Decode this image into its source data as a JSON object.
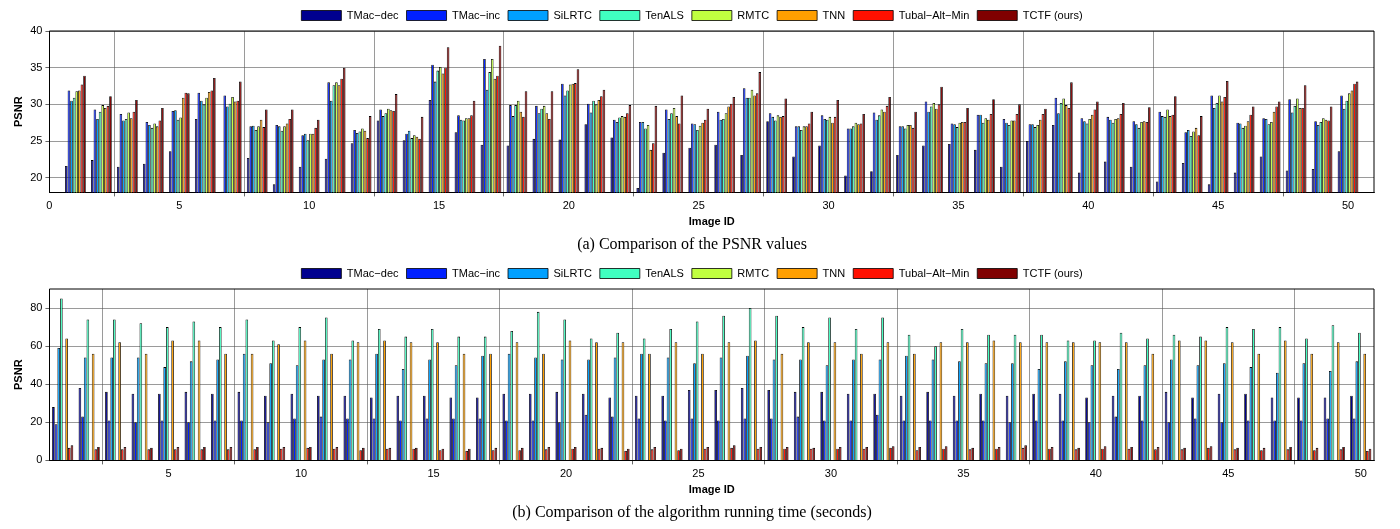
{
  "chart_data": [
    {
      "type": "bar",
      "title": "(a) Comparison of the PSNR values",
      "xlabel": "Image ID",
      "ylabel": "PSNR",
      "legend": "top",
      "grid": true,
      "x": [
        1,
        2,
        3,
        4,
        5,
        6,
        7,
        8,
        9,
        10,
        11,
        12,
        13,
        14,
        15,
        16,
        17,
        18,
        19,
        20,
        21,
        22,
        23,
        24,
        25,
        26,
        27,
        28,
        29,
        30,
        31,
        32,
        33,
        34,
        35,
        36,
        37,
        38,
        39,
        40,
        41,
        42,
        43,
        44,
        45,
        46,
        47,
        48,
        49,
        50
      ],
      "xlim": [
        0,
        51
      ],
      "xticks": [
        0,
        5,
        10,
        15,
        20,
        25,
        30,
        35,
        40,
        45,
        50
      ],
      "ylim": [
        18,
        40
      ],
      "yticks": [
        20,
        25,
        30,
        35,
        40
      ],
      "series": [
        {
          "name": "TMac−dec",
          "color": "#00008f",
          "values": [
            21.6,
            22.4,
            21.5,
            21.9,
            23.6,
            28.0,
            18.1,
            22.7,
            19.1,
            21.5,
            22.6,
            24.7,
            27.8,
            25.1,
            30.6,
            26.2,
            24.5,
            24.4,
            25.3,
            25.2,
            27.3,
            25.5,
            18.6,
            23.4,
            24.1,
            24.5,
            23.1,
            27.7,
            22.9,
            24.4,
            20.3,
            20.9,
            23.1,
            24.4,
            24.6,
            23.8,
            21.5,
            25.0,
            27.2,
            20.7,
            22.2,
            21.5,
            19.5,
            22.0,
            19.1,
            20.7,
            22.9,
            21.0,
            21.2,
            23.6
          ]
        },
        {
          "name": "TMac−inc",
          "color": "#0020ff",
          "values": [
            31.9,
            29.3,
            28.7,
            27.6,
            29.1,
            31.6,
            31.2,
            27.0,
            27.2,
            25.8,
            33.0,
            26.5,
            29.3,
            26.0,
            35.4,
            28.5,
            36.2,
            29.9,
            29.8,
            32.8,
            30.1,
            27.9,
            27.6,
            29.3,
            27.4,
            29.0,
            32.2,
            28.8,
            27.0,
            28.5,
            26.7,
            28.9,
            27.0,
            30.4,
            27.4,
            28.6,
            28.0,
            27.3,
            30.9,
            28.1,
            28.3,
            27.7,
            29.0,
            26.2,
            31.2,
            27.5,
            28.1,
            30.7,
            27.7,
            31.2
          ]
        },
        {
          "name": "SiLRTC",
          "color": "#00a0ff",
          "values": [
            30.5,
            28.0,
            27.8,
            27.2,
            29.2,
            30.5,
            29.7,
            27.1,
            27.0,
            26.0,
            30.5,
            26.1,
            28.4,
            26.4,
            33.1,
            27.9,
            32.0,
            28.4,
            28.8,
            31.2,
            28.9,
            27.6,
            27.6,
            28.0,
            27.3,
            27.9,
            30.9,
            28.3,
            27.0,
            28.0,
            26.7,
            27.9,
            27.0,
            29.0,
            27.3,
            28.6,
            27.5,
            27.3,
            28.8,
            27.7,
            27.9,
            27.3,
            28.4,
            26.5,
            29.5,
            27.4,
            28.0,
            28.9,
            27.2,
            29.4
          ]
        },
        {
          "name": "TenALS",
          "color": "#40ffc0",
          "values": [
            30.9,
            29.0,
            28.0,
            26.8,
            27.9,
            30.0,
            30.1,
            26.5,
            26.4,
            25.1,
            32.6,
            26.3,
            28.8,
            25.4,
            34.6,
            27.8,
            34.4,
            29.9,
            29.4,
            31.9,
            30.5,
            28.2,
            26.7,
            28.8,
            26.5,
            28.0,
            30.9,
            27.8,
            26.5,
            27.9,
            27.0,
            28.5,
            26.7,
            29.7,
            26.9,
            27.5,
            27.2,
            26.9,
            30.2,
            27.4,
            27.5,
            26.8,
            28.3,
            25.7,
            30.2,
            26.8,
            27.3,
            29.8,
            27.6,
            30.5
          ]
        },
        {
          "name": "RMTC",
          "color": "#c0ff40",
          "values": [
            31.8,
            29.9,
            28.9,
            27.4,
            28.2,
            30.9,
            31.0,
            27.0,
            27.0,
            26.0,
            33.0,
            26.7,
            29.4,
            25.8,
            35.1,
            28.1,
            36.2,
            30.5,
            29.8,
            32.7,
            30.0,
            28.4,
            27.2,
            29.5,
            27.1,
            28.8,
            32.0,
            28.5,
            27.0,
            28.3,
            27.5,
            29.3,
            27.2,
            30.2,
            27.5,
            28.1,
            27.8,
            27.2,
            30.8,
            28.0,
            28.0,
            27.6,
            29.3,
            26.3,
            31.2,
            27.1,
            27.6,
            30.8,
            28.1,
            31.5
          ]
        },
        {
          "name": "TNN",
          "color": "#ff9f00",
          "values": [
            31.9,
            29.5,
            28.1,
            27.0,
            30.9,
            31.7,
            30.4,
            27.9,
            27.4,
            26.0,
            32.6,
            26.4,
            29.2,
            25.6,
            34.2,
            28.1,
            33.5,
            29.0,
            28.8,
            32.8,
            30.6,
            28.3,
            23.8,
            28.4,
            27.5,
            29.7,
            31.2,
            28.3,
            27.0,
            27.5,
            27.3,
            29.0,
            27.2,
            29.4,
            27.6,
            27.9,
            27.8,
            27.9,
            29.9,
            28.6,
            28.1,
            27.7,
            28.4,
            26.8,
            30.4,
            27.7,
            29.0,
            29.5,
            27.9,
            31.9
          ]
        },
        {
          "name": "Tubal−Alt−Min",
          "color": "#ff1000",
          "values": [
            32.7,
            29.8,
            29.0,
            27.8,
            31.6,
            31.9,
            30.5,
            26.9,
            28.0,
            26.8,
            33.5,
            25.4,
            29.1,
            25.3,
            35.0,
            28.5,
            33.9,
            28.3,
            28.0,
            32.9,
            31.1,
            28.8,
            24.7,
            27.4,
            27.9,
            30.1,
            31.5,
            28.4,
            27.4,
            28.3,
            27.4,
            29.8,
            26.8,
            30.0,
            27.6,
            28.7,
            28.7,
            28.7,
            29.5,
            29.3,
            28.7,
            27.6,
            28.6,
            25.8,
            31.0,
            28.6,
            29.7,
            29.5,
            27.8,
            32.8
          ]
        },
        {
          "name": "TCTF (ours)",
          "color": "#800000",
          "values": [
            33.9,
            31.1,
            30.6,
            29.5,
            31.5,
            33.6,
            33.1,
            29.3,
            29.3,
            27.9,
            35.0,
            28.4,
            31.4,
            28.3,
            37.8,
            30.5,
            38.0,
            31.8,
            31.8,
            34.8,
            32.0,
            29.9,
            29.8,
            31.2,
            29.4,
            31.0,
            34.4,
            30.8,
            29.0,
            30.6,
            28.7,
            31.0,
            29.0,
            32.4,
            29.5,
            30.7,
            30.0,
            29.4,
            33.0,
            30.4,
            30.2,
            29.6,
            31.1,
            28.4,
            33.2,
            29.7,
            30.4,
            32.6,
            29.7,
            33.1
          ]
        }
      ]
    },
    {
      "type": "bar",
      "title": "(b) Comparison of the algorithm running time (seconds)",
      "xlabel": "Image ID",
      "ylabel": "PSNR",
      "legend": "top",
      "grid": true,
      "x": [
        1,
        2,
        3,
        4,
        5,
        6,
        7,
        8,
        9,
        10,
        11,
        12,
        13,
        14,
        15,
        16,
        17,
        18,
        19,
        20,
        21,
        22,
        23,
        24,
        25,
        26,
        27,
        28,
        29,
        30,
        31,
        32,
        33,
        34,
        35,
        36,
        37,
        38,
        39,
        40,
        41,
        42,
        43,
        44,
        45,
        46,
        47,
        48,
        49,
        50
      ],
      "xlim": [
        0.5,
        50.5
      ],
      "xticks": [
        5,
        10,
        15,
        20,
        25,
        30,
        35,
        40,
        45,
        50
      ],
      "ylim": [
        0,
        90
      ],
      "yticks": [
        0,
        20,
        40,
        60,
        80
      ],
      "series": [
        {
          "name": "TMac−dec",
          "color": "#00008f",
          "values": [
            28,
            38,
            36,
            35,
            35,
            36,
            35,
            36,
            34,
            35,
            34,
            34,
            33,
            34,
            34,
            33,
            33,
            35,
            35,
            36,
            35,
            33,
            34,
            34,
            37,
            37,
            38,
            37,
            36,
            36,
            35,
            35,
            34,
            36,
            34,
            35,
            34,
            35,
            35,
            33,
            34,
            34,
            36,
            33,
            35,
            35,
            33,
            33,
            33,
            34
          ]
        },
        {
          "name": "TMac−inc",
          "color": "#0020ff",
          "values": [
            19,
            23,
            21,
            20,
            21,
            20,
            21,
            21,
            20,
            22,
            23,
            22,
            22,
            21,
            22,
            22,
            22,
            21,
            21,
            20,
            24,
            23,
            22,
            21,
            22,
            21,
            22,
            22,
            23,
            21,
            21,
            24,
            21,
            21,
            21,
            21,
            20,
            21,
            21,
            20,
            23,
            21,
            20,
            22,
            20,
            21,
            21,
            21,
            22,
            22
          ]
        },
        {
          "name": "SiLRTC",
          "color": "#00a0ff",
          "values": [
            59,
            54,
            54,
            54,
            49,
            52,
            53,
            56,
            51,
            50,
            53,
            53,
            56,
            48,
            53,
            50,
            55,
            56,
            54,
            53,
            53,
            54,
            56,
            54,
            51,
            54,
            55,
            53,
            53,
            50,
            53,
            53,
            55,
            53,
            52,
            51,
            51,
            48,
            52,
            50,
            48,
            50,
            53,
            50,
            51,
            49,
            46,
            51,
            47,
            52
          ]
        },
        {
          "name": "TenALS",
          "color": "#40ffc0",
          "values": [
            85,
            74,
            74,
            72,
            70,
            73,
            70,
            74,
            63,
            70,
            75,
            63,
            69,
            65,
            69,
            65,
            65,
            68,
            78,
            74,
            64,
            67,
            64,
            69,
            73,
            76,
            80,
            76,
            70,
            75,
            69,
            75,
            66,
            60,
            69,
            66,
            66,
            66,
            63,
            63,
            67,
            64,
            66,
            65,
            70,
            69,
            70,
            64,
            71,
            67
          ]
        },
        {
          "name": "RMTC",
          "color": "#c0ff40",
          "values": [
            null,
            null,
            null,
            null,
            null,
            null,
            null,
            null,
            null,
            null,
            null,
            null,
            null,
            null,
            null,
            null,
            null,
            null,
            null,
            null,
            null,
            null,
            null,
            null,
            null,
            null,
            null,
            null,
            null,
            null,
            null,
            null,
            null,
            null,
            null,
            null,
            null,
            null,
            null,
            null,
            null,
            null,
            null,
            null,
            null,
            null,
            null,
            null,
            null,
            null
          ]
        },
        {
          "name": "TNN",
          "color": "#ff9f00",
          "values": [
            64,
            56,
            62,
            56,
            63,
            63,
            56,
            56,
            61,
            63,
            56,
            62,
            63,
            62,
            62,
            56,
            56,
            62,
            56,
            63,
            62,
            62,
            56,
            62,
            56,
            62,
            63,
            56,
            62,
            62,
            56,
            62,
            56,
            62,
            62,
            63,
            62,
            62,
            62,
            62,
            62,
            56,
            63,
            63,
            62,
            56,
            63,
            56,
            62,
            56
          ]
        },
        {
          "name": "Tubal−Alt−Min",
          "color": "#ff1000",
          "values": [
            6.6,
            5.8,
            5.8,
            5.8,
            5.8,
            5.8,
            5.8,
            5.8,
            6.1,
            6.6,
            6.1,
            5.3,
            6.1,
            6.1,
            5.3,
            5.0,
            5.3,
            5.3,
            5.8,
            6.1,
            6.1,
            5.0,
            5.8,
            5.3,
            6.1,
            6.6,
            6.1,
            6.1,
            6.1,
            6.1,
            6.1,
            6.6,
            5.3,
            6.1,
            5.8,
            6.1,
            6.6,
            6.1,
            5.8,
            6.1,
            6.1,
            5.8,
            5.8,
            6.6,
            5.8,
            5.3,
            5.8,
            5.3,
            5.8,
            5.0
          ]
        },
        {
          "name": "TCTF (ours)",
          "color": "#800000",
          "values": [
            7.9,
            7.1,
            7.1,
            6.6,
            7.1,
            7.1,
            7.1,
            7.1,
            7.1,
            7.1,
            7.1,
            6.6,
            6.6,
            6.6,
            6.1,
            6.1,
            6.6,
            6.6,
            7.1,
            7.1,
            6.6,
            6.1,
            7.1,
            6.1,
            7.1,
            7.9,
            7.1,
            7.1,
            6.6,
            7.1,
            7.1,
            7.4,
            7.1,
            7.4,
            6.6,
            7.1,
            7.9,
            7.1,
            6.6,
            7.4,
            7.1,
            7.1,
            6.6,
            7.4,
            6.6,
            6.6,
            7.1,
            6.6,
            7.1,
            6.1
          ]
        }
      ]
    }
  ]
}
